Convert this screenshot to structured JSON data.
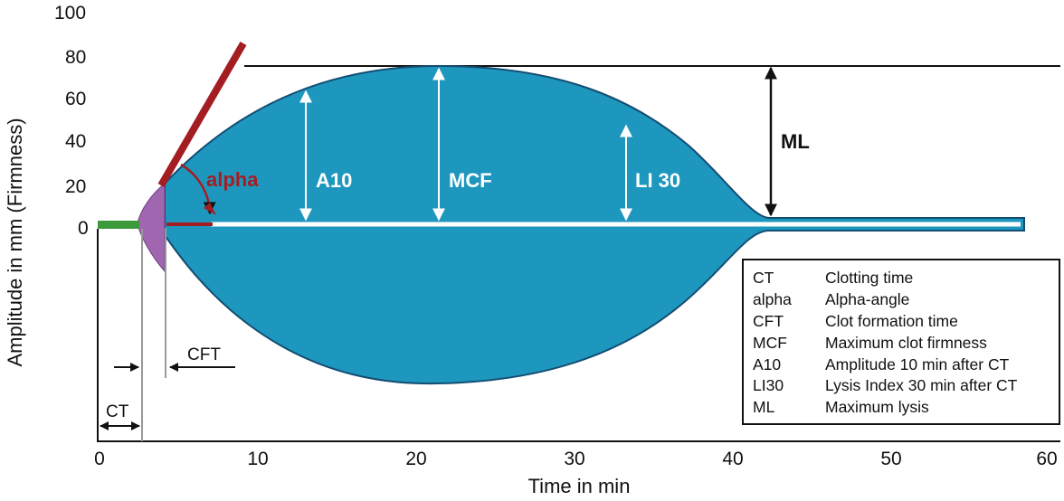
{
  "axes": {
    "y_label": "Amplitude in mm (Firmness)",
    "x_label": "Time in min",
    "y_ticks": [
      "100",
      "80",
      "60",
      "40",
      "20",
      "0"
    ],
    "x_ticks": [
      "0",
      "10",
      "20",
      "30",
      "40",
      "50",
      "60"
    ]
  },
  "labels": {
    "alpha": "alpha",
    "a10": "A10",
    "mcf": "MCF",
    "li30": "LI 30",
    "ml": "ML",
    "ct": "CT",
    "cft": "CFT"
  },
  "legend": [
    {
      "abbr": "CT",
      "desc": "Clotting time"
    },
    {
      "abbr": "alpha",
      "desc": "Alpha-angle"
    },
    {
      "abbr": "CFT",
      "desc": "Clot formation time"
    },
    {
      "abbr": "MCF",
      "desc": "Maximum clot firmness"
    },
    {
      "abbr": "A10",
      "desc": "Amplitude 10 min after CT"
    },
    {
      "abbr": "LI30",
      "desc": "Lysis Index 30 min after CT"
    },
    {
      "abbr": "ML",
      "desc": "Maximum lysis"
    }
  ],
  "colors": {
    "trace_fill": "#1e97be",
    "trace_stroke": "#134d72",
    "clot_formation": "#a066b0",
    "alpha_line": "#a41d23",
    "ct_baseline": "#3d9a3a",
    "guide_lines": "#999999"
  }
}
